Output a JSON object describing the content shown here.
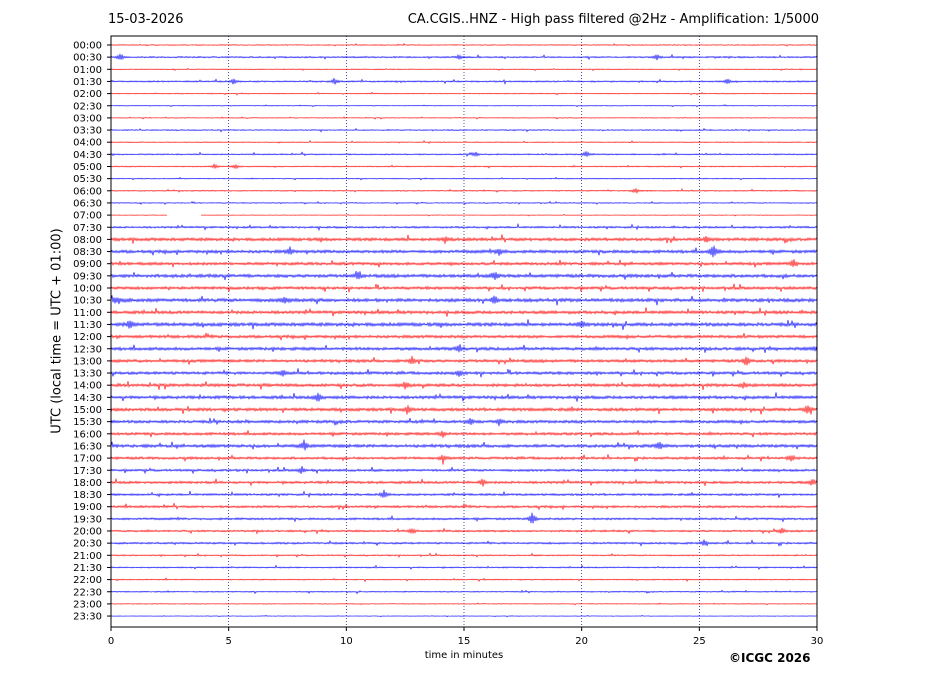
{
  "header": {
    "date": "15-03-2026",
    "title": "CA.CGIS..HNZ - High pass filtered @2Hz - Amplification: 1/5000"
  },
  "footer": {
    "copyright": "©ICGC 2026"
  },
  "colors": {
    "red_trace": "#ff0000",
    "blue_trace": "#0000ff",
    "grid": "#000080",
    "axes": "#000000"
  },
  "chart_data": {
    "type": "line",
    "subtype": "helicorder",
    "xlabel": "time in minutes",
    "ylabel": "UTC (local time = UTC + 01:00)",
    "xlim": [
      0,
      30
    ],
    "xticks": [
      0,
      5,
      10,
      15,
      20,
      25,
      30
    ],
    "grid": "vertical dotted lines at 5, 10, 15, 20, 25 minutes",
    "row_labels": [
      "00:00",
      "00:30",
      "01:00",
      "01:30",
      "02:00",
      "02:30",
      "03:00",
      "03:30",
      "04:00",
      "04:30",
      "05:00",
      "05:30",
      "06:00",
      "06:30",
      "07:00",
      "07:30",
      "08:00",
      "08:30",
      "09:00",
      "09:30",
      "10:00",
      "10:30",
      "11:00",
      "11:30",
      "12:00",
      "12:30",
      "13:00",
      "13:30",
      "14:00",
      "14:30",
      "15:00",
      "15:30",
      "16:00",
      "16:30",
      "17:00",
      "17:30",
      "18:00",
      "18:30",
      "19:00",
      "19:30",
      "20:00",
      "20:30",
      "21:00",
      "21:30",
      "22:00",
      "22:30",
      "23:00",
      "23:30"
    ],
    "row_colors": [
      "red",
      "blue"
    ],
    "noise_level": [
      0.5,
      0.8,
      0.5,
      0.8,
      0.5,
      0.4,
      0.4,
      0.6,
      0.5,
      0.7,
      0.6,
      0.5,
      0.6,
      0.5,
      0.3,
      1.0,
      1.6,
      1.6,
      1.5,
      1.7,
      1.5,
      1.8,
      1.6,
      1.8,
      1.5,
      1.6,
      1.5,
      1.5,
      1.6,
      1.6,
      1.6,
      1.5,
      1.4,
      1.6,
      1.3,
      1.2,
      1.3,
      1.1,
      1.2,
      1.1,
      1.0,
      1.0,
      0.7,
      0.7,
      0.6,
      0.6,
      0.4,
      0.3
    ],
    "bursts": [
      {
        "row": 1,
        "t": 0.4,
        "a": 4
      },
      {
        "row": 1,
        "t": 14.8,
        "a": 3
      },
      {
        "row": 1,
        "t": 23.2,
        "a": 3
      },
      {
        "row": 3,
        "t": 5.2,
        "a": 3
      },
      {
        "row": 3,
        "t": 9.5,
        "a": 4
      },
      {
        "row": 3,
        "t": 26.2,
        "a": 3
      },
      {
        "row": 9,
        "t": 15.5,
        "a": 3
      },
      {
        "row": 9,
        "t": 20.2,
        "a": 3
      },
      {
        "row": 10,
        "t": 4.4,
        "a": 3
      },
      {
        "row": 10,
        "t": 5.3,
        "a": 3
      },
      {
        "row": 12,
        "t": 22.3,
        "a": 3
      },
      {
        "row": 16,
        "t": 14.2,
        "a": 4
      },
      {
        "row": 16,
        "t": 25.3,
        "a": 4
      },
      {
        "row": 17,
        "t": 7.6,
        "a": 4
      },
      {
        "row": 17,
        "t": 16.5,
        "a": 4
      },
      {
        "row": 17,
        "t": 25.6,
        "a": 8
      },
      {
        "row": 18,
        "t": 29.0,
        "a": 5
      },
      {
        "row": 19,
        "t": 10.5,
        "a": 4
      },
      {
        "row": 19,
        "t": 16.3,
        "a": 5
      },
      {
        "row": 21,
        "t": 0.2,
        "a": 4
      },
      {
        "row": 21,
        "t": 7.4,
        "a": 4
      },
      {
        "row": 21,
        "t": 16.3,
        "a": 5
      },
      {
        "row": 23,
        "t": 0.8,
        "a": 5
      },
      {
        "row": 23,
        "t": 20.0,
        "a": 4
      },
      {
        "row": 25,
        "t": 14.8,
        "a": 5
      },
      {
        "row": 25,
        "t": 30.0,
        "a": 4
      },
      {
        "row": 26,
        "t": 12.8,
        "a": 5
      },
      {
        "row": 26,
        "t": 27.0,
        "a": 6
      },
      {
        "row": 27,
        "t": 7.3,
        "a": 4
      },
      {
        "row": 27,
        "t": 14.8,
        "a": 4
      },
      {
        "row": 28,
        "t": 12.5,
        "a": 4
      },
      {
        "row": 28,
        "t": 26.9,
        "a": 4
      },
      {
        "row": 29,
        "t": 8.8,
        "a": 5
      },
      {
        "row": 30,
        "t": 12.6,
        "a": 5
      },
      {
        "row": 30,
        "t": 29.6,
        "a": 5
      },
      {
        "row": 31,
        "t": 15.3,
        "a": 4
      },
      {
        "row": 31,
        "t": 16.5,
        "a": 5
      },
      {
        "row": 32,
        "t": 14.1,
        "a": 4
      },
      {
        "row": 33,
        "t": 8.2,
        "a": 6
      },
      {
        "row": 33,
        "t": 23.3,
        "a": 5
      },
      {
        "row": 34,
        "t": 14.1,
        "a": 4
      },
      {
        "row": 34,
        "t": 28.9,
        "a": 4
      },
      {
        "row": 35,
        "t": 8.1,
        "a": 4
      },
      {
        "row": 36,
        "t": 15.8,
        "a": 4
      },
      {
        "row": 36,
        "t": 29.8,
        "a": 4
      },
      {
        "row": 37,
        "t": 11.6,
        "a": 5
      },
      {
        "row": 39,
        "t": 17.9,
        "a": 7
      },
      {
        "row": 40,
        "t": 12.8,
        "a": 4
      },
      {
        "row": 40,
        "t": 28.5,
        "a": 4
      },
      {
        "row": 41,
        "t": 25.2,
        "a": 4
      }
    ],
    "gaps": [
      {
        "row": 14,
        "t_start": 2.4,
        "t_end": 3.8
      }
    ]
  }
}
